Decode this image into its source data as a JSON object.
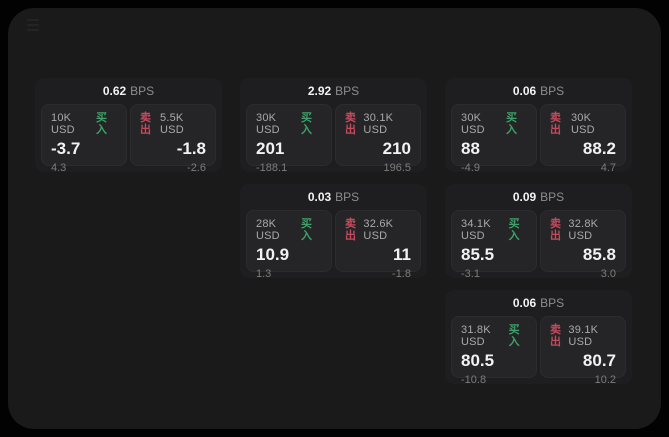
{
  "labels": {
    "bps": "BPS",
    "buy": "买入",
    "sell": "卖出"
  },
  "colors": {
    "page_bg": "#020202",
    "container_bg": "#1a1a1b",
    "card_bg": "#1e1e20",
    "panel_bg": "#252528",
    "buy_green": "#3da268",
    "sell_red": "#c44a5c",
    "value_white": "#f2f2f2"
  },
  "cards": [
    {
      "bps": "0.62",
      "buy": {
        "amount": "10K USD",
        "price": "-3.7",
        "delta": "4.3"
      },
      "sell": {
        "amount": "5.5K USD",
        "price": "-1.8",
        "delta": "-2.6"
      }
    },
    {
      "bps": "2.92",
      "buy": {
        "amount": "30K USD",
        "price": "201",
        "delta": "-188.1"
      },
      "sell": {
        "amount": "30.1K USD",
        "price": "210",
        "delta": "196.5"
      }
    },
    {
      "bps": "0.06",
      "buy": {
        "amount": "30K USD",
        "price": "88",
        "delta": "-4.9"
      },
      "sell": {
        "amount": "30K USD",
        "price": "88.2",
        "delta": "4.7"
      }
    },
    {
      "bps": "0.03",
      "buy": {
        "amount": "28K USD",
        "price": "10.9",
        "delta": "1.3"
      },
      "sell": {
        "amount": "32.6K USD",
        "price": "11",
        "delta": "-1.8"
      }
    },
    {
      "bps": "0.09",
      "buy": {
        "amount": "34.1K USD",
        "price": "85.5",
        "delta": "-3.1"
      },
      "sell": {
        "amount": "32.8K USD",
        "price": "85.8",
        "delta": "3.0"
      }
    },
    {
      "bps": "0.06",
      "buy": {
        "amount": "31.8K USD",
        "price": "80.5",
        "delta": "-10.8"
      },
      "sell": {
        "amount": "39.1K USD",
        "price": "80.7",
        "delta": "10.2"
      }
    }
  ]
}
